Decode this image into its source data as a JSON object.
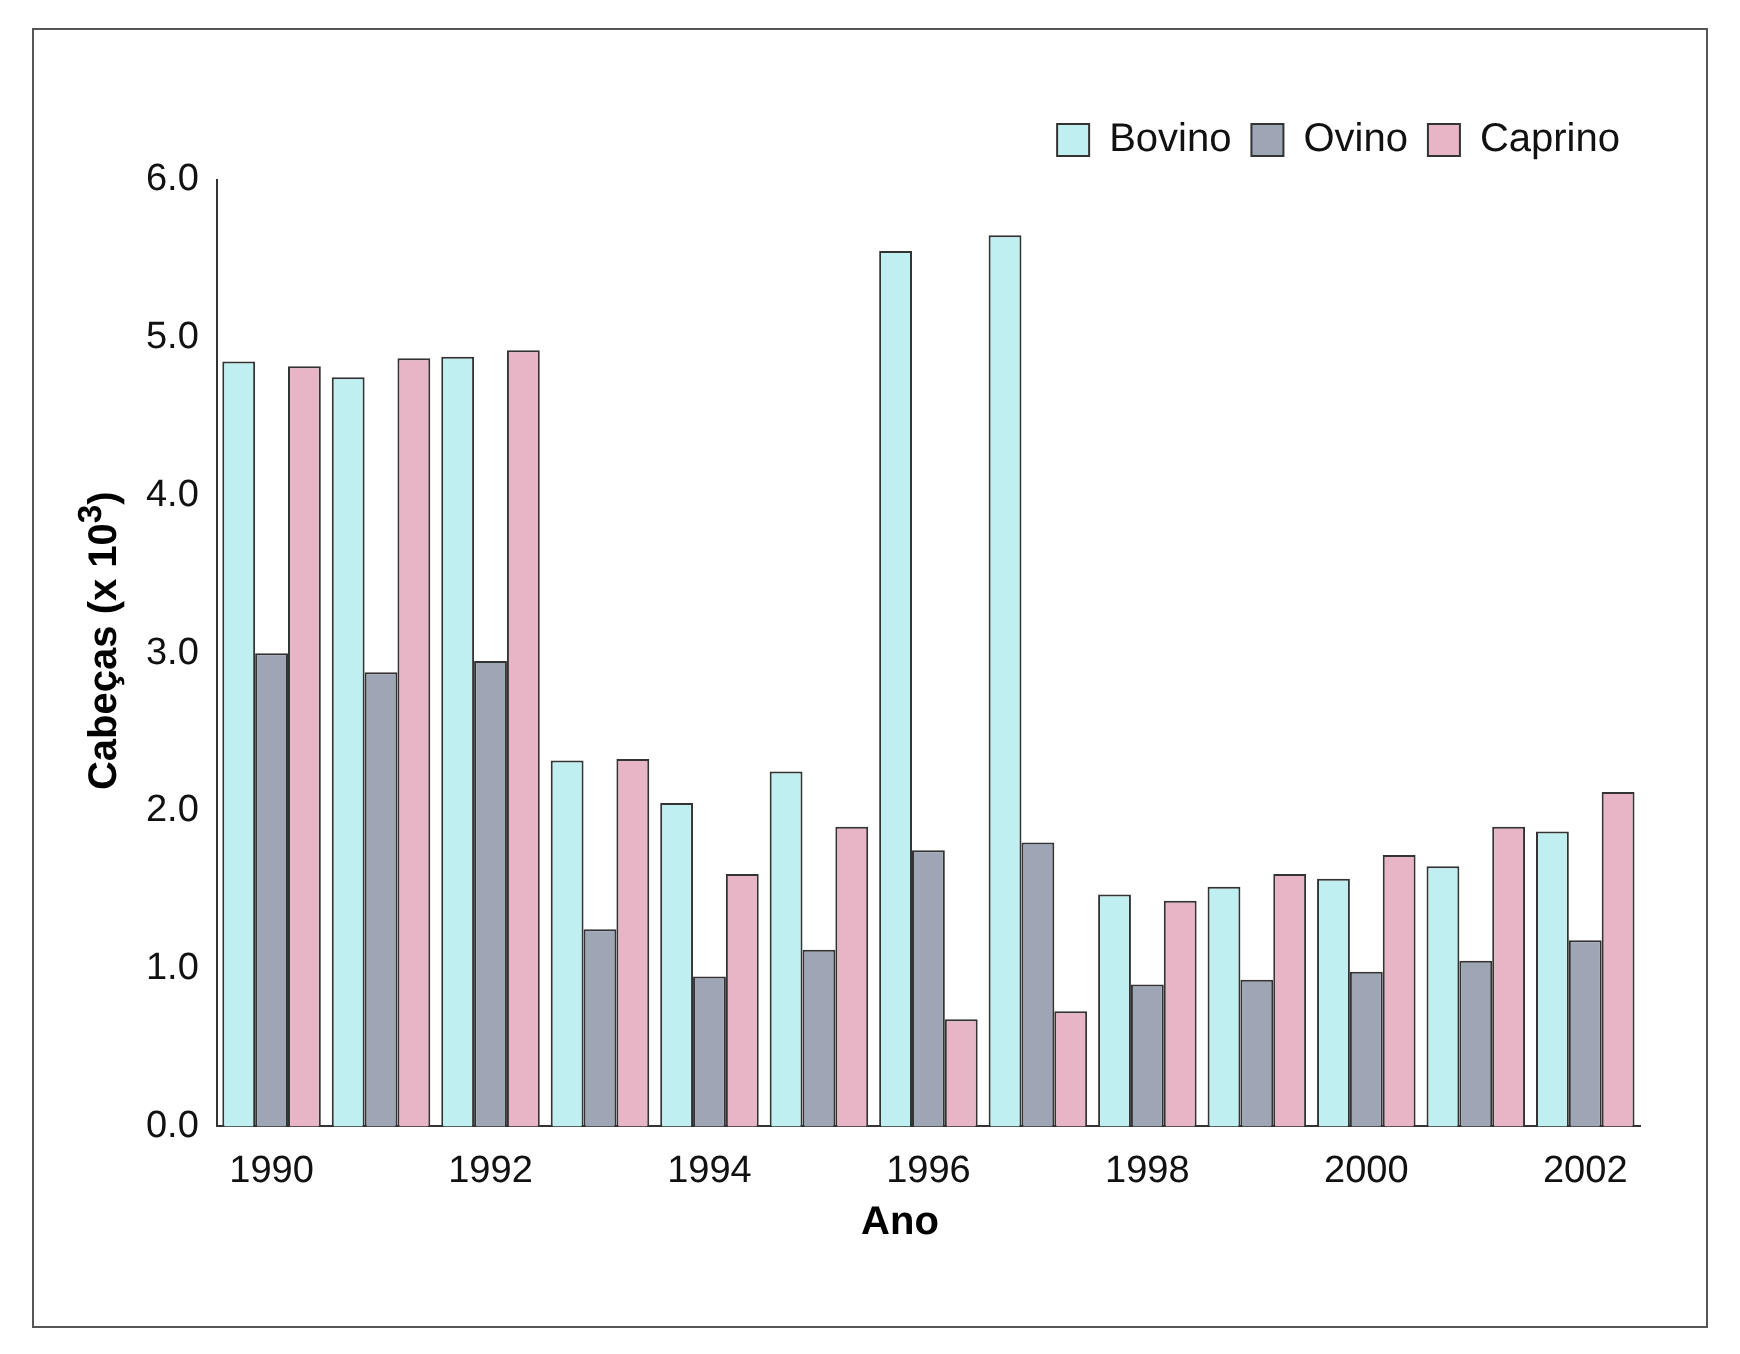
{
  "chart_data": {
    "type": "bar",
    "xlabel": "Ano",
    "ylabel": "Cabeças (x 10$^{3}$)",
    "categories": [
      "1990",
      null,
      "1992",
      null,
      "1994",
      null,
      "1996",
      null,
      "1998",
      null,
      "2000",
      null,
      "2002"
    ],
    "series": [
      {
        "name": "Bovino",
        "color": "#bfeff0",
        "values": [
          4.85,
          4.75,
          4.88,
          2.32,
          2.05,
          2.25,
          5.55,
          5.65,
          1.47,
          1.52,
          1.57,
          1.65,
          1.87
        ]
      },
      {
        "name": "Ovino",
        "color": "#9ea6b5",
        "values": [
          3.0,
          2.88,
          2.95,
          1.25,
          0.95,
          1.12,
          1.75,
          1.8,
          0.9,
          0.93,
          0.98,
          1.05,
          1.18
        ]
      },
      {
        "name": "Caprino",
        "color": "#e8b5c6",
        "values": [
          4.82,
          4.87,
          4.92,
          2.33,
          1.6,
          1.9,
          0.68,
          0.73,
          1.43,
          1.6,
          1.72,
          1.9,
          2.12
        ]
      }
    ],
    "ylim": [
      0,
      6
    ],
    "yticks": [
      {
        "value": 0,
        "label": "0.0"
      },
      {
        "value": 1,
        "label": "1.0"
      },
      {
        "value": 2,
        "label": "2.0"
      },
      {
        "value": 3,
        "label": "3.0"
      },
      {
        "value": 4,
        "label": "4.0"
      },
      {
        "value": 5,
        "label": "5.0"
      },
      {
        "value": 6,
        "label": "6.0"
      }
    ],
    "grid": false,
    "legend": "top right"
  }
}
